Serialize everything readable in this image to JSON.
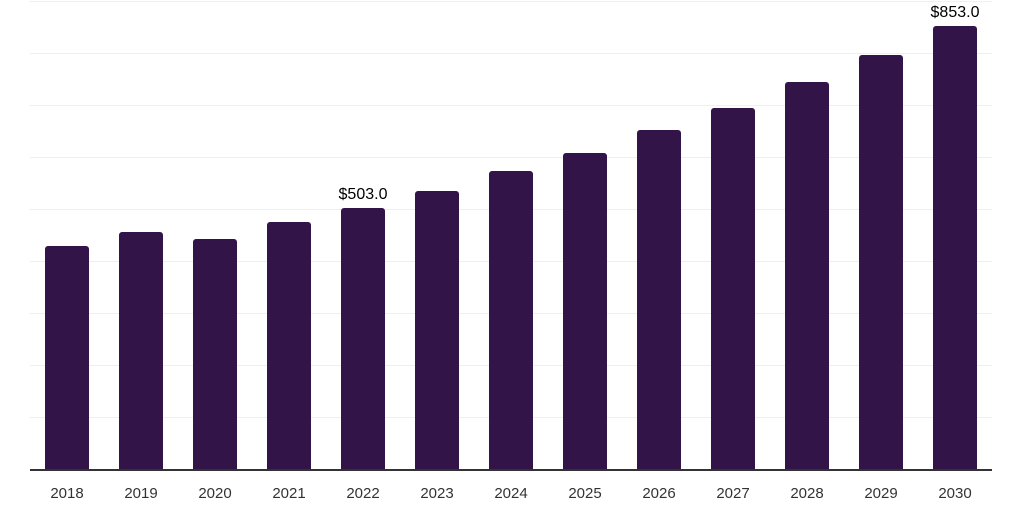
{
  "chart_data": {
    "type": "bar",
    "title": "",
    "xlabel": "",
    "ylabel": "",
    "categories": [
      "2018",
      "2019",
      "2020",
      "2021",
      "2022",
      "2023",
      "2024",
      "2025",
      "2026",
      "2027",
      "2028",
      "2029",
      "2030"
    ],
    "values": [
      431,
      457,
      444,
      476,
      503,
      537,
      575,
      610,
      653,
      696,
      747,
      798,
      853
    ],
    "value_labels": [
      null,
      null,
      null,
      null,
      "$503.0",
      null,
      null,
      null,
      null,
      null,
      null,
      null,
      "$853.0"
    ],
    "ylim": [
      0,
      900
    ],
    "grid_interval": 100,
    "grid": "horizontal-only",
    "legend_position": "none",
    "colors": {
      "bar": "#321449",
      "axis_line": "#333333",
      "gridline": "#f1eef1",
      "tick_label": "#333333",
      "value_label": "#000000",
      "background": "#ffffff"
    }
  }
}
